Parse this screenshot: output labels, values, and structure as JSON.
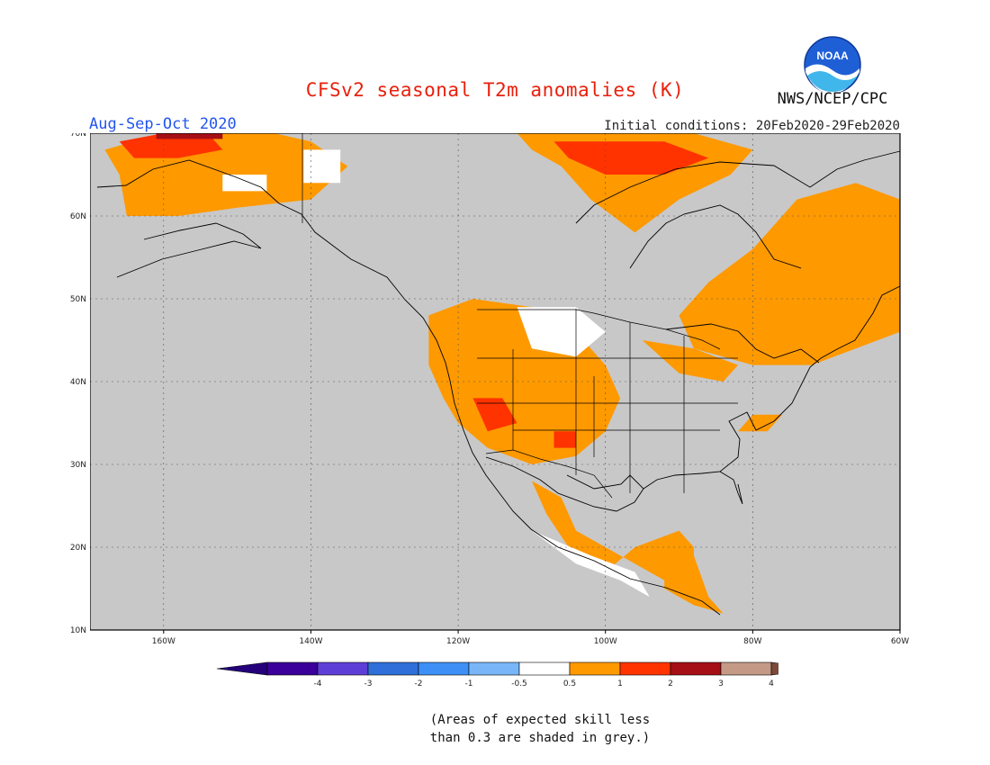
{
  "title": "CFSv2 seasonal T2m anomalies (K)",
  "season": "Aug-Sep-Oct 2020",
  "initial_conditions": "Initial conditions: 20Feb2020-29Feb2020",
  "agency": "NWS/NCEP/CPC",
  "logo_text": "NOAA",
  "footnote": "(Areas of expected skill less\nthan 0.3 are shaded in grey.)",
  "map": {
    "lon_range": [
      -170,
      -60
    ],
    "lat_range": [
      10,
      70
    ],
    "lon_ticks": [
      {
        "value": -160,
        "label": "160W"
      },
      {
        "value": -140,
        "label": "140W"
      },
      {
        "value": -120,
        "label": "120W"
      },
      {
        "value": -100,
        "label": "100W"
      },
      {
        "value": -80,
        "label": "80W"
      },
      {
        "value": -60,
        "label": "60W"
      }
    ],
    "lat_ticks": [
      {
        "value": 10,
        "label": "10N"
      },
      {
        "value": 20,
        "label": "20N"
      },
      {
        "value": 30,
        "label": "30N"
      },
      {
        "value": 40,
        "label": "40N"
      },
      {
        "value": 50,
        "label": "50N"
      },
      {
        "value": 60,
        "label": "60N"
      },
      {
        "value": 70,
        "label": "70N"
      }
    ],
    "background_color": "#c8c8c8",
    "anomaly_regions": [
      {
        "name": "alaska-warm",
        "class": "0.5-1",
        "color": "#ff9900",
        "polygon": [
          [
            -168,
            68
          ],
          [
            -160,
            70
          ],
          [
            -145,
            70
          ],
          [
            -140,
            69
          ],
          [
            -135,
            66
          ],
          [
            -140,
            62
          ],
          [
            -150,
            61
          ],
          [
            -158,
            60
          ],
          [
            -165,
            60
          ],
          [
            -166,
            65
          ]
        ]
      },
      {
        "name": "alaska-north-strong",
        "class": "1-2",
        "color": "#ff3300",
        "polygon": [
          [
            -166,
            69
          ],
          [
            -160,
            70
          ],
          [
            -154,
            70
          ],
          [
            -152,
            68
          ],
          [
            -158,
            67
          ],
          [
            -164,
            67
          ]
        ]
      },
      {
        "name": "alaska-north-extreme",
        "class": "2-3",
        "color": "#a50f15",
        "polygon": [
          [
            -161,
            70
          ],
          [
            -152,
            70
          ],
          [
            -152,
            69.3
          ],
          [
            -161,
            69.3
          ]
        ]
      },
      {
        "name": "canada-arctic-warm",
        "class": "0.5-1",
        "color": "#ff9900",
        "polygon": [
          [
            -112,
            70
          ],
          [
            -88,
            70
          ],
          [
            -80,
            68
          ],
          [
            -83,
            65
          ],
          [
            -90,
            62
          ],
          [
            -96,
            58
          ],
          [
            -102,
            62
          ],
          [
            -106,
            66
          ],
          [
            -110,
            68
          ]
        ]
      },
      {
        "name": "canada-arctic-strong",
        "class": "1-2",
        "color": "#ff3300",
        "polygon": [
          [
            -107,
            69
          ],
          [
            -92,
            69
          ],
          [
            -86,
            67
          ],
          [
            -92,
            65
          ],
          [
            -100,
            65
          ],
          [
            -105,
            67
          ]
        ]
      },
      {
        "name": "eastern-canada-warm",
        "class": "0.5-1",
        "color": "#ff9900",
        "polygon": [
          [
            -80,
            56
          ],
          [
            -74,
            62
          ],
          [
            -66,
            64
          ],
          [
            -60,
            62
          ],
          [
            -60,
            46
          ],
          [
            -66,
            44
          ],
          [
            -72,
            42
          ],
          [
            -80,
            42
          ],
          [
            -88,
            44
          ],
          [
            -90,
            48
          ],
          [
            -86,
            52
          ]
        ]
      },
      {
        "name": "great-lakes-warm",
        "class": "0.5-1",
        "color": "#ff9900",
        "polygon": [
          [
            -95,
            45
          ],
          [
            -88,
            44
          ],
          [
            -82,
            42
          ],
          [
            -84,
            40
          ],
          [
            -90,
            41
          ]
        ]
      },
      {
        "name": "western-us-warm",
        "class": "0.5-1",
        "color": "#ff9900",
        "polygon": [
          [
            -124,
            48
          ],
          [
            -118,
            50
          ],
          [
            -110,
            49
          ],
          [
            -104,
            46
          ],
          [
            -100,
            42
          ],
          [
            -98,
            38
          ],
          [
            -100,
            34
          ],
          [
            -104,
            31
          ],
          [
            -110,
            30
          ],
          [
            -116,
            32
          ],
          [
            -120,
            35
          ],
          [
            -122,
            38
          ],
          [
            -124,
            42
          ]
        ]
      },
      {
        "name": "southwest-strong",
        "class": "1-2",
        "color": "#ff3300",
        "polygon": [
          [
            -118,
            38
          ],
          [
            -114,
            38
          ],
          [
            -112,
            35
          ],
          [
            -116,
            34
          ]
        ]
      },
      {
        "name": "new-mexico-strong",
        "class": "1-2",
        "color": "#ff3300",
        "polygon": [
          [
            -107,
            34
          ],
          [
            -104,
            34
          ],
          [
            -104,
            32
          ],
          [
            -107,
            32
          ]
        ]
      },
      {
        "name": "mexico-warm",
        "class": "0.5-1",
        "color": "#ff9900",
        "polygon": [
          [
            -110,
            28
          ],
          [
            -106,
            26
          ],
          [
            -104,
            22
          ],
          [
            -100,
            20
          ],
          [
            -96,
            18
          ],
          [
            -92,
            16
          ],
          [
            -88,
            14
          ],
          [
            -88,
            20
          ],
          [
            -90,
            22
          ],
          [
            -96,
            20
          ],
          [
            -100,
            17
          ],
          [
            -105,
            20
          ],
          [
            -108,
            24
          ]
        ]
      },
      {
        "name": "central-america-warm",
        "class": "0.5-1",
        "color": "#ff9900",
        "polygon": [
          [
            -92,
            18
          ],
          [
            -88,
            19
          ],
          [
            -86,
            14
          ],
          [
            -84,
            12
          ],
          [
            -88,
            13
          ],
          [
            -92,
            15
          ]
        ]
      },
      {
        "name": "southeast-warm",
        "class": "0.5-1",
        "color": "#ff9900",
        "polygon": [
          [
            -82,
            34
          ],
          [
            -78,
            34
          ],
          [
            -76,
            36
          ],
          [
            -80,
            36
          ]
        ]
      }
    ],
    "neutral_regions": [
      {
        "name": "alaska-neutral",
        "polygon": [
          [
            -152,
            65
          ],
          [
            -146,
            65
          ],
          [
            -146,
            63
          ],
          [
            -152,
            63
          ]
        ]
      },
      {
        "name": "yukon-neutral",
        "polygon": [
          [
            -141,
            68
          ],
          [
            -136,
            68
          ],
          [
            -136,
            64
          ],
          [
            -141,
            64
          ]
        ]
      },
      {
        "name": "northern-plains-neutral",
        "polygon": [
          [
            -112,
            49
          ],
          [
            -104,
            49
          ],
          [
            -100,
            46
          ],
          [
            -104,
            43
          ],
          [
            -110,
            44
          ]
        ]
      },
      {
        "name": "mexico-coast-neutral",
        "polygon": [
          [
            -110,
            22
          ],
          [
            -104,
            18
          ],
          [
            -98,
            16
          ],
          [
            -94,
            14
          ],
          [
            -96,
            17
          ],
          [
            -102,
            19
          ]
        ]
      }
    ]
  },
  "colorbar": {
    "labels": [
      "-4",
      "-3",
      "-2",
      "-1",
      "-0.5",
      "0.5",
      "1",
      "2",
      "3",
      "4"
    ],
    "colors": [
      "#3a0099",
      "#5e3fd6",
      "#2e6fd9",
      "#3d8ff5",
      "#78b6f7",
      "#ffffff",
      "#ff9900",
      "#ff3300",
      "#a50f15",
      "#c49a86"
    ],
    "end_low_color": "#24007a",
    "end_high_color": "#7a4a3a"
  }
}
